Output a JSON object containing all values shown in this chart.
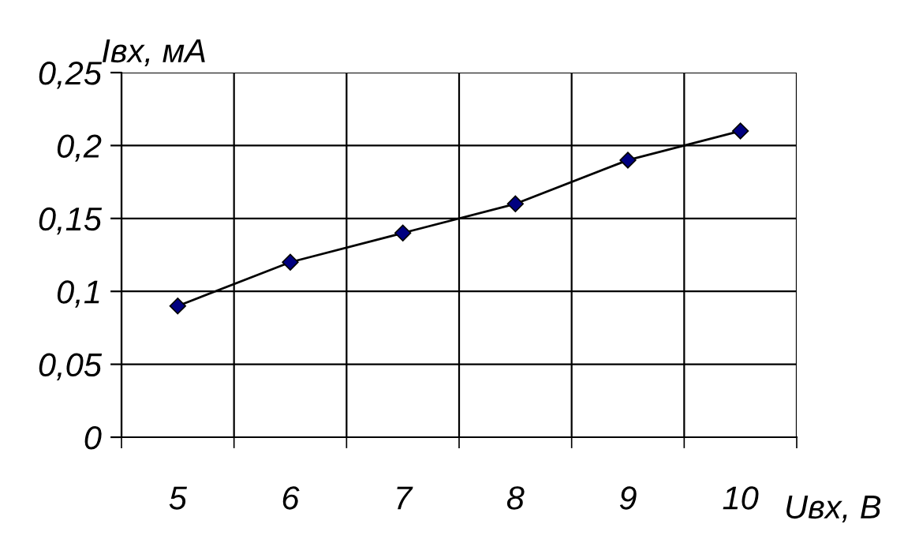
{
  "chart_data": {
    "type": "line",
    "ylabel": "Iвх, мА",
    "xlabel": "Uвх, В",
    "categories": [
      "5",
      "6",
      "7",
      "8",
      "9",
      "10"
    ],
    "series": [
      {
        "color": "#000080",
        "values": [
          0.09,
          0.12,
          0.14,
          0.16,
          0.19,
          0.21
        ]
      }
    ],
    "ylim": [
      0,
      0.25
    ],
    "yticks": [
      0,
      {
        "value": 0.05,
        "label": "0,05"
      },
      {
        "value": 0.1,
        "label": "0,1"
      },
      {
        "value": 0.15,
        "label": "0,15"
      },
      {
        "value": 0.2,
        "label": "0,2"
      },
      {
        "value": 0.25,
        "label": "0,25"
      }
    ],
    "grid": true,
    "marker": "diamond",
    "line_style": "solid"
  }
}
